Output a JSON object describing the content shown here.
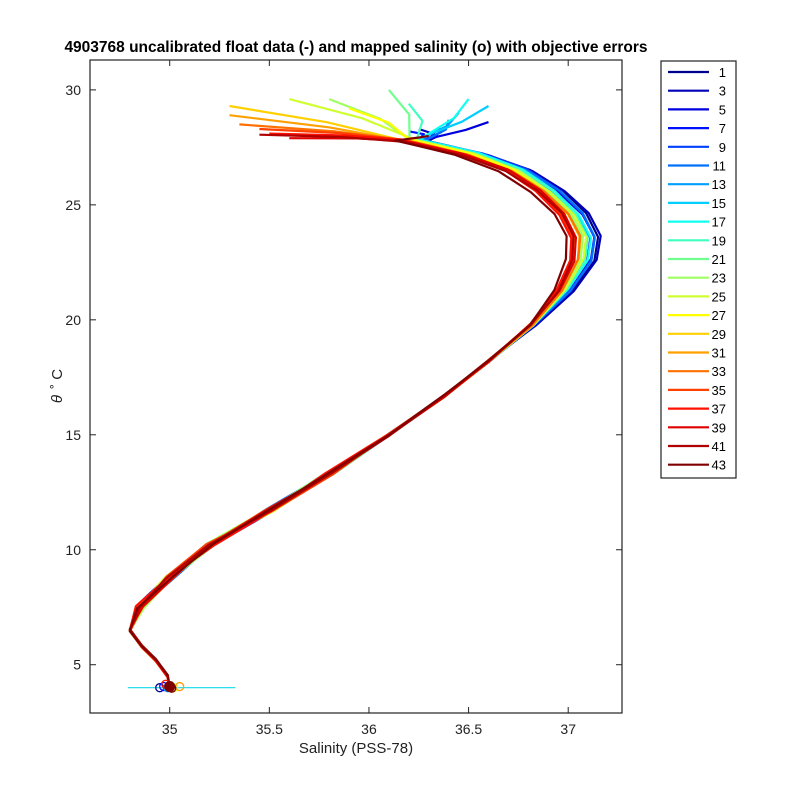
{
  "chart_data": {
    "type": "line",
    "title": "4903768 uncalibrated float data (-) and mapped salinity (o) with objective errors",
    "xlabel": "Salinity (PSS-78)",
    "ylabel_symbol": "θ",
    "ylabel_unit": "˚ C",
    "xlim": [
      34.6,
      37.27
    ],
    "ylim": [
      2.9,
      31.3
    ],
    "xticks": [
      35,
      35.5,
      36,
      36.5,
      37
    ],
    "xtick_labels": [
      "35",
      "35.5",
      "36",
      "36.5",
      "37"
    ],
    "yticks": [
      5,
      10,
      15,
      20,
      25,
      30
    ],
    "ytick_labels": [
      "5",
      "10",
      "15",
      "20",
      "25",
      "30"
    ],
    "grid": false,
    "legend_position": "outside-right",
    "series": [
      {
        "name": "1",
        "color": "#00008f"
      },
      {
        "name": "3",
        "color": "#0000b7"
      },
      {
        "name": "5",
        "color": "#0000df"
      },
      {
        "name": "7",
        "color": "#0010ff"
      },
      {
        "name": "9",
        "color": "#0040ff"
      },
      {
        "name": "11",
        "color": "#0070ff"
      },
      {
        "name": "13",
        "color": "#009fff"
      },
      {
        "name": "15",
        "color": "#00cfff"
      },
      {
        "name": "17",
        "color": "#10ffef"
      },
      {
        "name": "19",
        "color": "#40ffbf"
      },
      {
        "name": "21",
        "color": "#70ff8f"
      },
      {
        "name": "23",
        "color": "#9fff60"
      },
      {
        "name": "25",
        "color": "#cfff30"
      },
      {
        "name": "27",
        "color": "#ffff00"
      },
      {
        "name": "29",
        "color": "#ffd000"
      },
      {
        "name": "31",
        "color": "#ffa000"
      },
      {
        "name": "33",
        "color": "#ff7000"
      },
      {
        "name": "35",
        "color": "#ff4000"
      },
      {
        "name": "37",
        "color": "#ff1000"
      },
      {
        "name": "39",
        "color": "#df0000"
      },
      {
        "name": "41",
        "color": "#b00000"
      },
      {
        "name": "43",
        "color": "#800000"
      }
    ],
    "base_profile": [
      [
        35.0,
        4.0
      ],
      [
        34.99,
        4.5
      ],
      [
        34.93,
        5.2
      ],
      [
        34.86,
        5.8
      ],
      [
        34.8,
        6.5
      ],
      [
        34.85,
        7.5
      ],
      [
        35.0,
        8.8
      ],
      [
        35.2,
        10.2
      ],
      [
        35.5,
        11.7
      ],
      [
        35.8,
        13.3
      ],
      [
        36.1,
        15.0
      ],
      [
        36.38,
        16.7
      ],
      [
        36.6,
        18.2
      ],
      [
        36.82,
        19.8
      ],
      [
        36.97,
        21.3
      ],
      [
        37.05,
        22.6
      ],
      [
        37.06,
        23.6
      ],
      [
        37.0,
        24.6
      ],
      [
        36.88,
        25.6
      ],
      [
        36.72,
        26.5
      ],
      [
        36.5,
        27.2
      ],
      [
        36.3,
        27.6
      ]
    ],
    "surface_start": [
      [
        36.3,
        28.1
      ],
      [
        36.25,
        28.3
      ],
      [
        36.6,
        28.6
      ],
      [
        36.2,
        28.2
      ],
      [
        36.35,
        28.4
      ],
      [
        36.4,
        28.7
      ],
      [
        36.45,
        29.0
      ],
      [
        36.6,
        29.3
      ],
      [
        36.5,
        29.6
      ],
      [
        36.2,
        29.4
      ],
      [
        36.1,
        30.0
      ],
      [
        35.8,
        29.6
      ],
      [
        35.6,
        29.6
      ],
      [
        35.9,
        29.2
      ],
      [
        35.3,
        29.3
      ],
      [
        35.3,
        28.9
      ],
      [
        35.35,
        28.5
      ],
      [
        35.45,
        28.3
      ],
      [
        35.5,
        28.1
      ],
      [
        35.6,
        27.9
      ],
      [
        35.45,
        28.05
      ],
      [
        36.3,
        28.0
      ]
    ],
    "mapped_salinity_points": [
      [
        34.95,
        4.0
      ],
      [
        34.97,
        4.05
      ],
      [
        34.99,
        4.0
      ],
      [
        35.0,
        4.1
      ],
      [
        35.02,
        4.0
      ],
      [
        35.05,
        4.05
      ],
      [
        34.98,
        4.15
      ],
      [
        35.01,
        3.98
      ]
    ],
    "error_bar_range": [
      34.79,
      35.33
    ]
  }
}
